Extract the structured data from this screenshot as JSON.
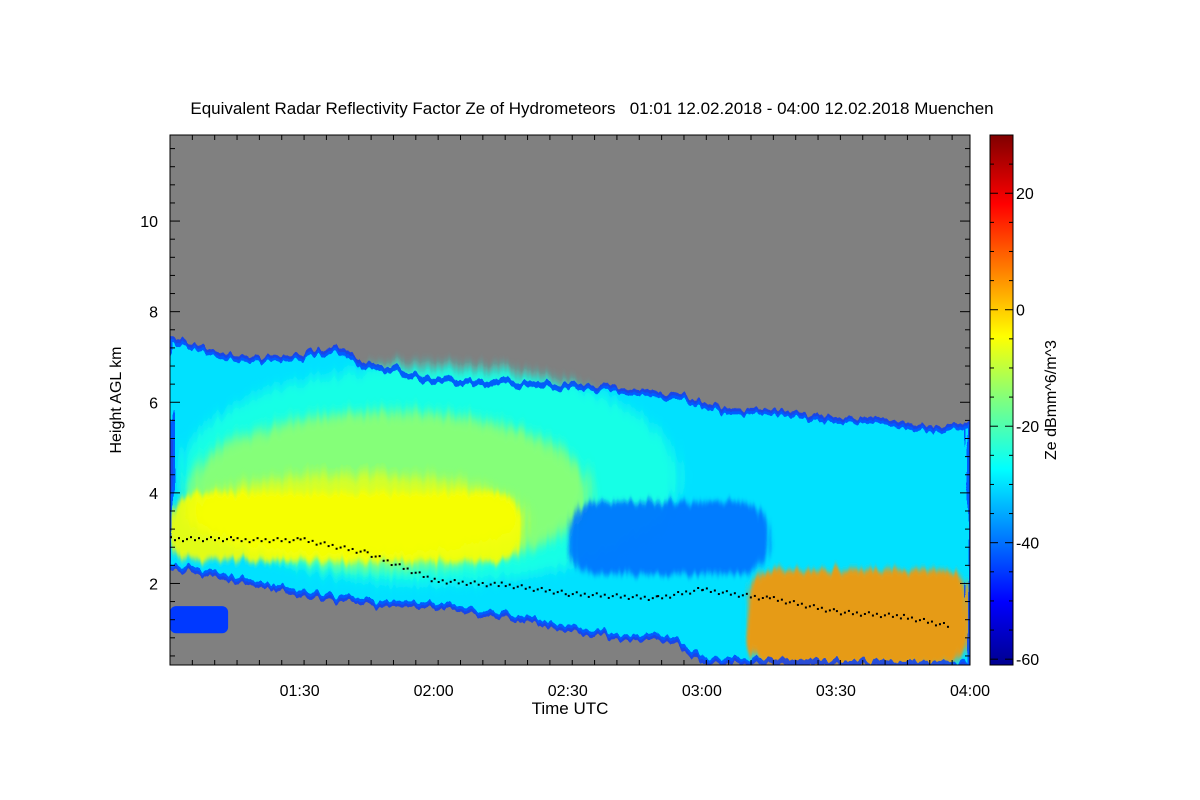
{
  "chart_data": {
    "type": "heatmap",
    "title": "Equivalent Radar Reflectivity Factor Ze of Hydrometeors   01:01 12.02.2018 - 04:00 12.02.2018 Muenchen",
    "xlabel": "Time UTC",
    "ylabel": "Height AGL km",
    "xlim": [
      "01:01",
      "04:00"
    ],
    "ylim": [
      0.2,
      11.9
    ],
    "x_ticks": [
      "01:30",
      "02:00",
      "02:30",
      "03:00",
      "03:30",
      "04:00"
    ],
    "y_ticks": [
      2,
      4,
      6,
      8,
      10
    ],
    "no_data_color": "#808080",
    "colorbar": {
      "label": "Ze dBmm^6/m^3",
      "range": [
        -61,
        30
      ],
      "ticks": [
        20,
        0,
        -20,
        -40,
        -60
      ],
      "tick_labels": [
        "20",
        "0",
        "-20",
        "-40",
        "-60"
      ],
      "colormap": "jet"
    },
    "cloud_top_km": [
      {
        "time": "01:01",
        "height": 7.4
      },
      {
        "time": "01:10",
        "height": 7.1
      },
      {
        "time": "01:20",
        "height": 6.9
      },
      {
        "time": "01:30",
        "height": 7.0
      },
      {
        "time": "01:38",
        "height": 7.2
      },
      {
        "time": "01:45",
        "height": 6.8
      },
      {
        "time": "02:00",
        "height": 6.5
      },
      {
        "time": "02:20",
        "height": 6.4
      },
      {
        "time": "02:40",
        "height": 6.3
      },
      {
        "time": "02:55",
        "height": 6.1
      },
      {
        "time": "03:05",
        "height": 5.8
      },
      {
        "time": "03:15",
        "height": 5.8
      },
      {
        "time": "03:30",
        "height": 5.6
      },
      {
        "time": "03:40",
        "height": 5.6
      },
      {
        "time": "03:50",
        "height": 5.4
      },
      {
        "time": "04:00",
        "height": 5.5
      }
    ],
    "cloud_base_km": [
      {
        "time": "01:01",
        "height": 2.4
      },
      {
        "time": "01:15",
        "height": 2.1
      },
      {
        "time": "01:30",
        "height": 1.8
      },
      {
        "time": "01:45",
        "height": 1.6
      },
      {
        "time": "02:00",
        "height": 1.5
      },
      {
        "time": "02:15",
        "height": 1.3
      },
      {
        "time": "02:30",
        "height": 1.0
      },
      {
        "time": "02:45",
        "height": 0.8
      },
      {
        "time": "02:55",
        "height": 0.7
      },
      {
        "time": "03:00",
        "height": 0.3
      },
      {
        "time": "04:00",
        "height": 0.2
      }
    ],
    "reflectivity_regions": [
      {
        "description_ref": "main layer",
        "time_range": [
          "01:01",
          "02:20"
        ],
        "height_range": [
          2.5,
          4.0
        ],
        "ze_dbz": -5
      },
      {
        "time_range": [
          "02:30",
          "03:15"
        ],
        "height_range": [
          2.2,
          3.8
        ],
        "ze_dbz": -40
      },
      {
        "time_range": [
          "03:10",
          "04:00"
        ],
        "height_range": [
          0.2,
          2.3
        ],
        "ze_dbz": 5
      }
    ],
    "melting_layer_km": [
      {
        "time": "01:01",
        "height": 3.0
      },
      {
        "time": "01:15",
        "height": 3.0
      },
      {
        "time": "01:30",
        "height": 3.0
      },
      {
        "time": "01:45",
        "height": 2.7
      },
      {
        "time": "02:00",
        "height": 2.1
      },
      {
        "time": "02:15",
        "height": 2.0
      },
      {
        "time": "02:30",
        "height": 1.8
      },
      {
        "time": "02:50",
        "height": 1.7
      },
      {
        "time": "03:00",
        "height": 1.9
      },
      {
        "time": "03:15",
        "height": 1.7
      },
      {
        "time": "03:30",
        "height": 1.4
      },
      {
        "time": "03:45",
        "height": 1.3
      },
      {
        "time": "03:55",
        "height": 1.1
      }
    ],
    "grid": false,
    "legend": "colorbar-right"
  }
}
